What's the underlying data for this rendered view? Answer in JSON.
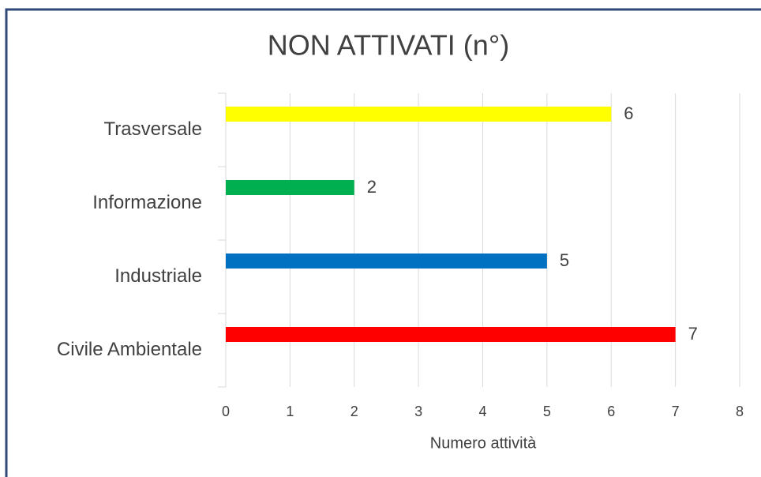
{
  "chart_data": {
    "type": "barh",
    "title": "NON ATTIVATI (n°)",
    "categories": [
      "Trasversale",
      "Informazione",
      "Industriale",
      "Civile Ambientale"
    ],
    "values": [
      6,
      2,
      5,
      7
    ],
    "colors": [
      "#ffff00",
      "#00b050",
      "#0070c0",
      "#ff0000"
    ],
    "x_label": "Numero attività",
    "xlim": [
      0,
      8
    ],
    "xticks": [
      0,
      1,
      2,
      3,
      4,
      5,
      6,
      7,
      8
    ],
    "grid": true
  }
}
